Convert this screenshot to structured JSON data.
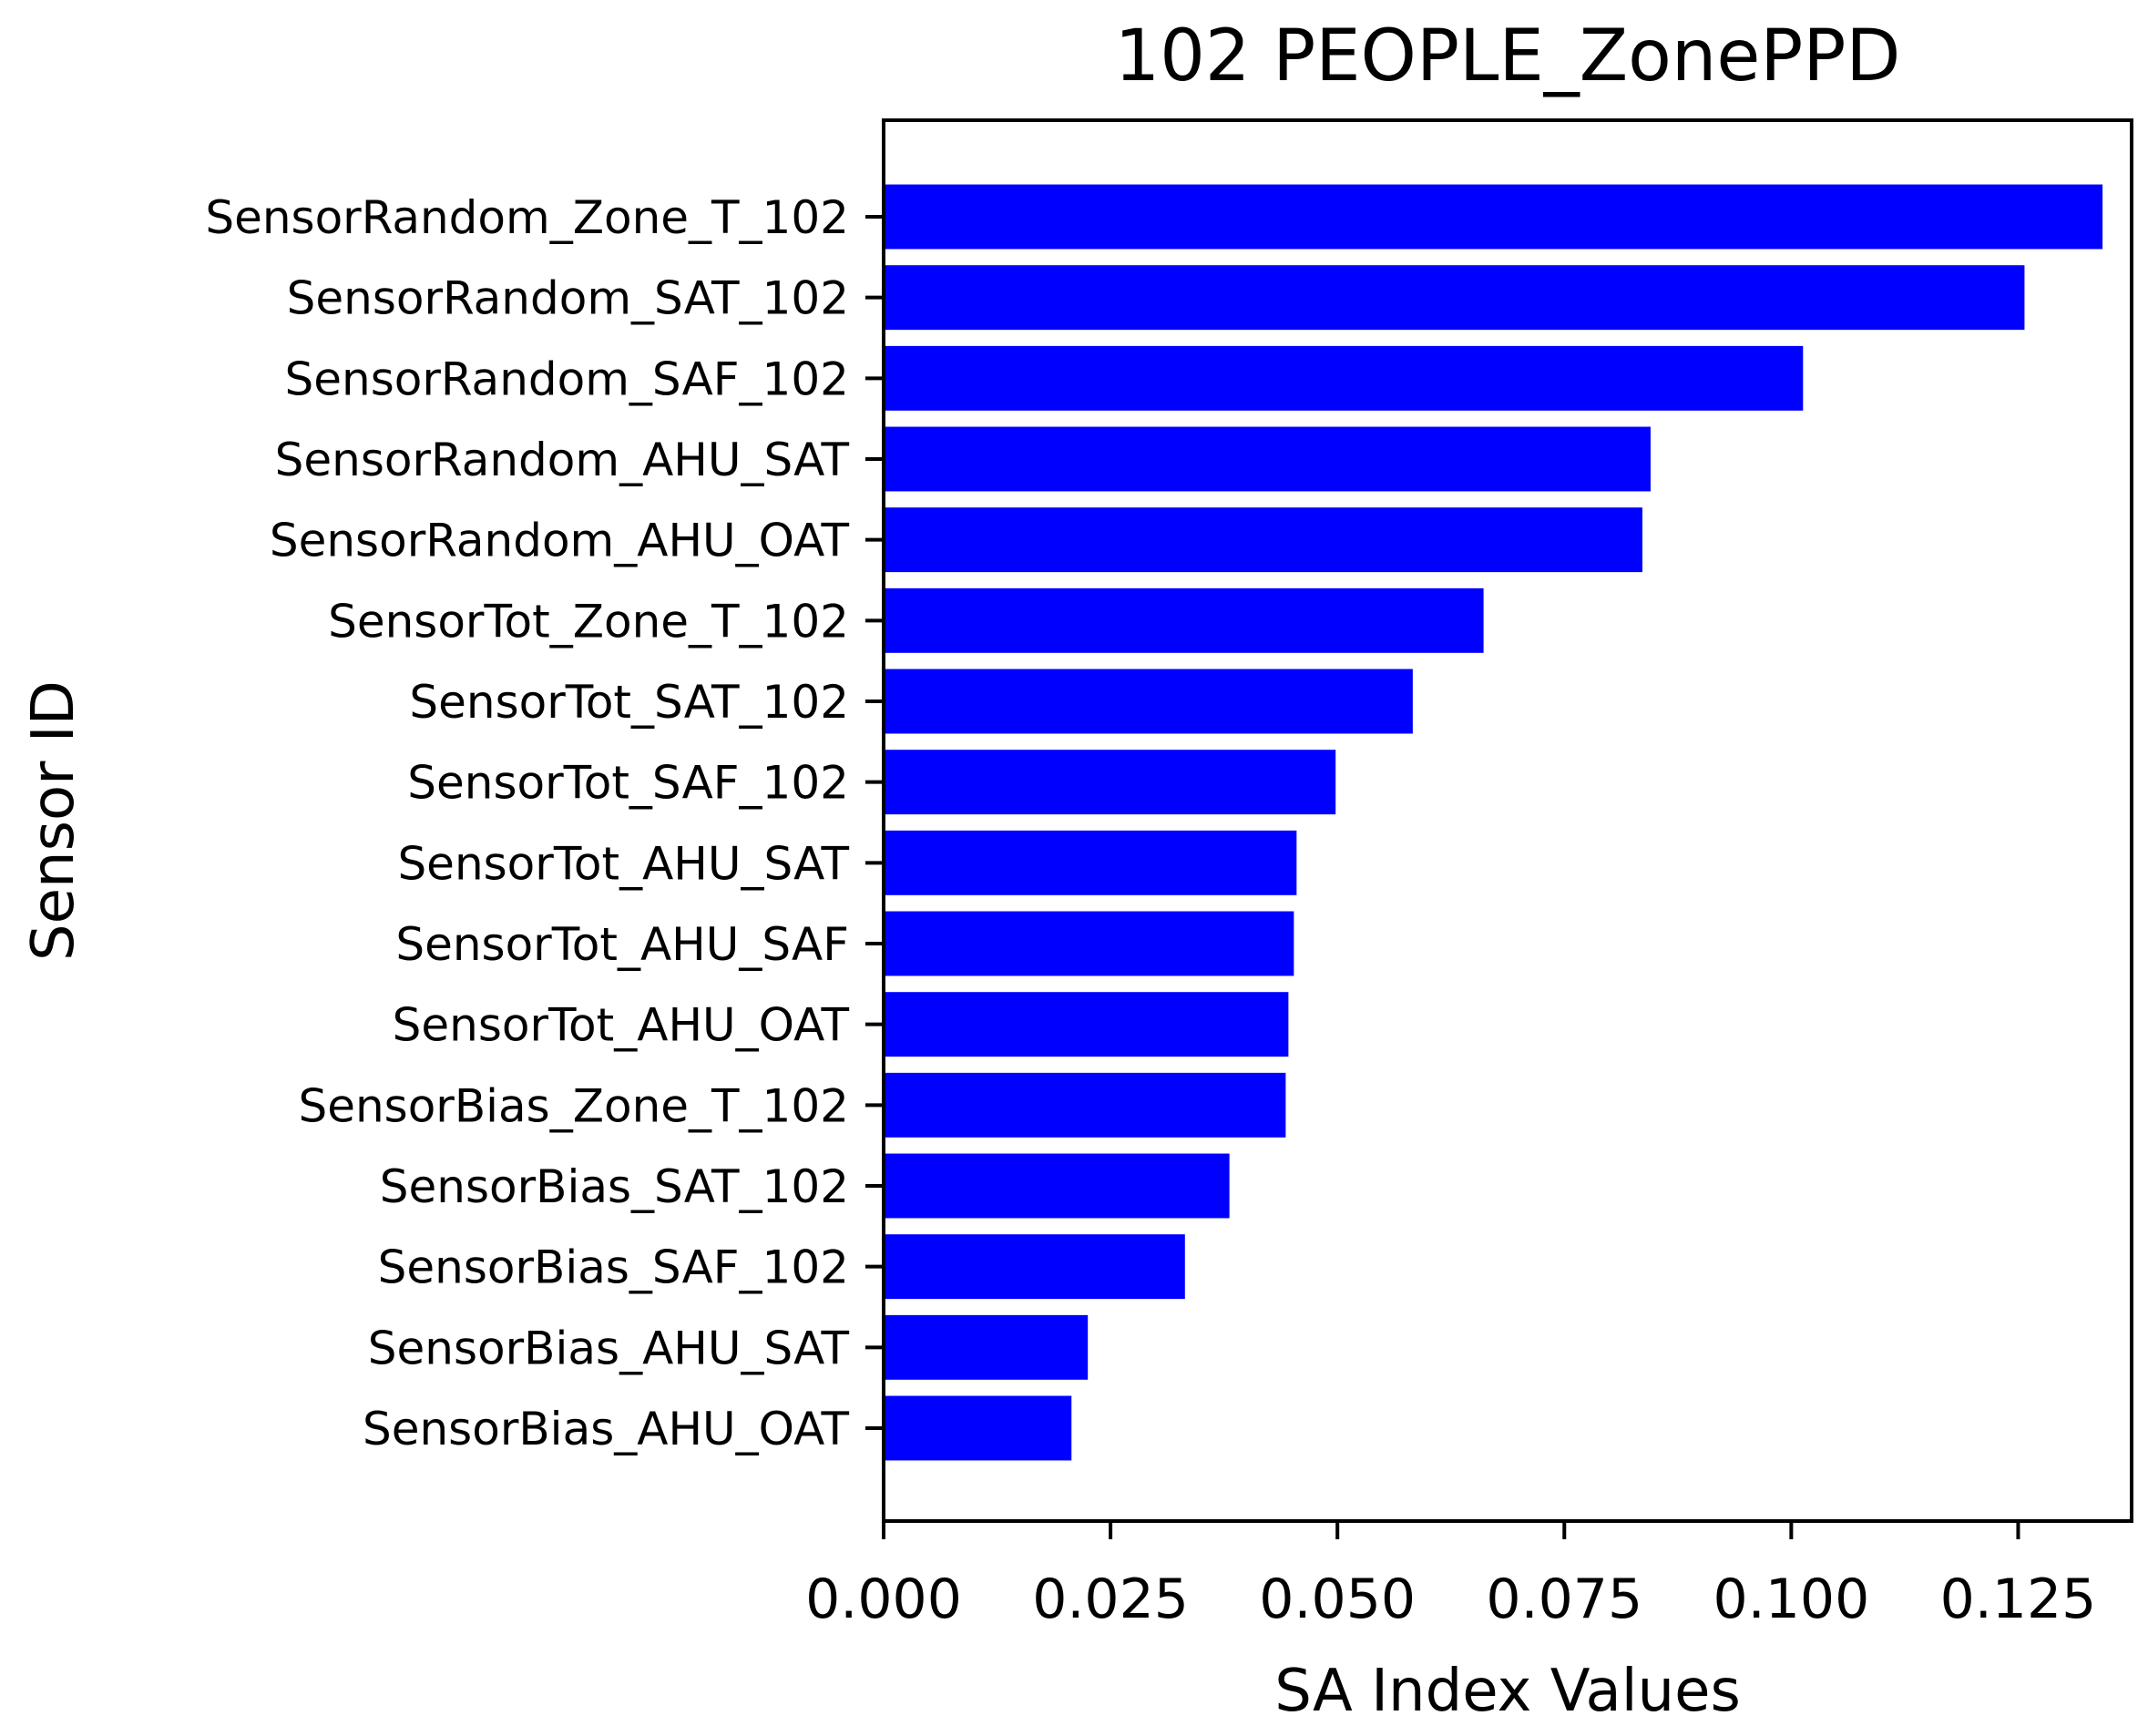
{
  "chart_data": {
    "type": "bar",
    "orientation": "horizontal",
    "title": "102 PEOPLE_ZonePPD",
    "xlabel": "SA Index Values",
    "ylabel": "Sensor ID",
    "xlim": [
      0,
      0.1375
    ],
    "xticks": [
      0.0,
      0.025,
      0.05,
      0.075,
      0.1,
      0.125
    ],
    "xtick_labels": [
      "0.000",
      "0.025",
      "0.050",
      "0.075",
      "0.100",
      "0.125"
    ],
    "grid": false,
    "bar_color": "#0000ff",
    "categories": [
      "SensorRandom_Zone_T_102",
      "SensorRandom_SAT_102",
      "SensorRandom_SAF_102",
      "SensorRandom_AHU_SAT",
      "SensorRandom_AHU_OAT",
      "SensorTot_Zone_T_102",
      "SensorTot_SAT_102",
      "SensorTot_SAF_102",
      "SensorTot_AHU_SAT",
      "SensorTot_AHU_SAF",
      "SensorTot_AHU_OAT",
      "SensorBias_Zone_T_102",
      "SensorBias_SAT_102",
      "SensorBias_SAF_102",
      "SensorBias_AHU_SAT",
      "SensorBias_AHU_OAT"
    ],
    "values": [
      0.1343,
      0.1257,
      0.1013,
      0.0845,
      0.0836,
      0.0661,
      0.0583,
      0.0498,
      0.0455,
      0.0452,
      0.0446,
      0.0443,
      0.0381,
      0.0332,
      0.0225,
      0.0207
    ]
  }
}
